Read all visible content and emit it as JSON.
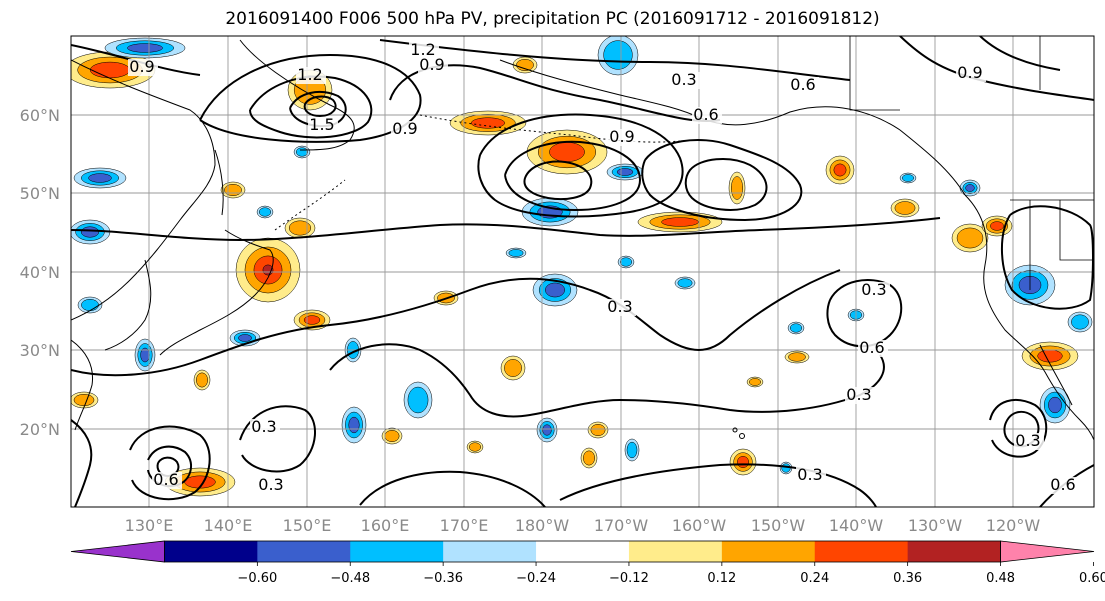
{
  "title": "2016091400 F006 500 hPa PV, precipitation PC (2016091712 - 2016091812)",
  "map": {
    "lat_labels": [
      "60°N",
      "50°N",
      "40°N",
      "30°N",
      "20°N"
    ],
    "lon_labels": [
      "130°E",
      "140°E",
      "150°E",
      "160°E",
      "170°E",
      "180°W",
      "170°W",
      "160°W",
      "150°W",
      "140°W",
      "130°W",
      "120°W"
    ],
    "contour_labels": [
      {
        "id": "c1",
        "text": "0.9"
      },
      {
        "id": "c2",
        "text": "1.2"
      },
      {
        "id": "c3",
        "text": "0.9"
      },
      {
        "id": "c4",
        "text": "1.2"
      },
      {
        "id": "c5",
        "text": "1.5"
      },
      {
        "id": "c6",
        "text": "0.9"
      },
      {
        "id": "c7",
        "text": "0.3"
      },
      {
        "id": "c8",
        "text": "0.6"
      },
      {
        "id": "c9",
        "text": "0.9"
      },
      {
        "id": "c10",
        "text": "0.6"
      },
      {
        "id": "c11",
        "text": "0.9"
      },
      {
        "id": "c12",
        "text": "0.3"
      },
      {
        "id": "c13",
        "text": "0.6"
      },
      {
        "id": "c14",
        "text": "0.3"
      },
      {
        "id": "c15",
        "text": "0.3"
      },
      {
        "id": "c16",
        "text": "0.6"
      },
      {
        "id": "c17",
        "text": "0.3"
      },
      {
        "id": "c18",
        "text": "0.3"
      },
      {
        "id": "c19",
        "text": "0.6"
      },
      {
        "id": "c20",
        "text": "0.3"
      },
      {
        "id": "c21",
        "text": "0.3"
      }
    ]
  },
  "colorbar": {
    "tick_labels": [
      "−0.60",
      "−0.48",
      "−0.36",
      "−0.24",
      "−0.12",
      "0.12",
      "0.24",
      "0.36",
      "0.48",
      "0.60"
    ],
    "colors": [
      "#9932cc",
      "#00008b",
      "#3a5fcd",
      "#00bfff",
      "#b0e2ff",
      "#ffffff",
      "#ffec8b",
      "#ffa500",
      "#ff4500",
      "#b22222",
      "#ff82ab"
    ]
  },
  "palette": {
    "pos_light": "#ffec8b",
    "pos_mid": "#ffa500",
    "pos_strong": "#ff4500",
    "pos_max": "#b22222",
    "neg_light": "#b0e2ff",
    "neg_mid": "#00bfff",
    "neg_strong": "#3a5fcd",
    "neg_max": "#00008b"
  }
}
